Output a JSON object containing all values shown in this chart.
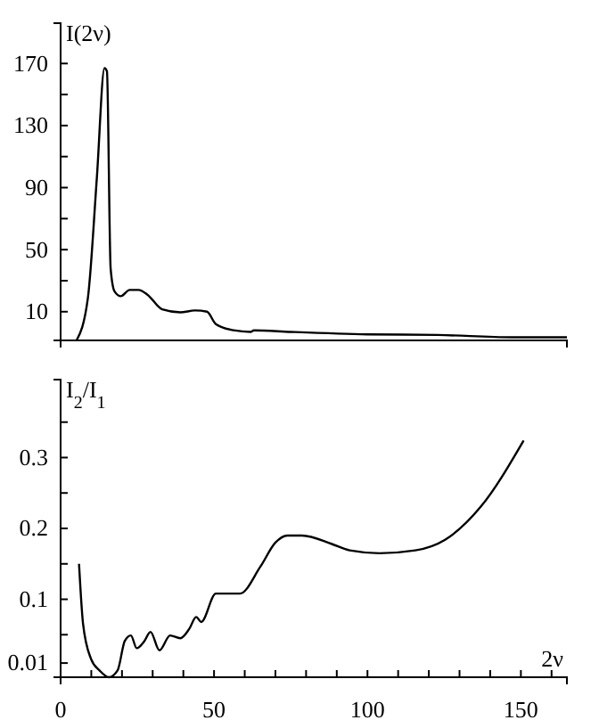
{
  "chart_data": [
    {
      "type": "line",
      "ylabel": "I(2ν)",
      "tick_labels": "y",
      "xlim": [
        0,
        165
      ],
      "ylim": [
        -8.5,
        196
      ],
      "yticks": [
        10,
        {
          "value": 30,
          "label": null
        },
        50,
        {
          "value": 70,
          "label": null
        },
        90,
        {
          "value": 110,
          "label": null
        },
        130,
        {
          "value": 150,
          "label": null
        },
        170
      ],
      "x": [
        5.2,
        8.9,
        11.8,
        14.3,
        15.1,
        16.3,
        17.6,
        19.6,
        22.5,
        25.4,
        28.3,
        33.1,
        39,
        43.8,
        47.7,
        50.6,
        56.4,
        62,
        63,
        75,
        100,
        123,
        147,
        165
      ],
      "series": [
        {
          "color": "#000000",
          "values": [
            -8.5,
            19,
            96,
            167,
            165,
            38,
            23,
            20,
            24,
            24,
            21,
            11.5,
            9.6,
            10.8,
            10,
            2,
            -2,
            -3,
            -2,
            -3,
            -4.6,
            -5,
            -6.5,
            -6.5
          ]
        }
      ]
    },
    {
      "type": "line",
      "ylabel": "I$_{2}$/I$_{1}$",
      "xlabel": "2ν",
      "xlim": [
        0,
        165
      ],
      "ylim": [
        -0.01,
        0.41
      ],
      "xticks": [
        0,
        {
          "value": 10,
          "label": null
        },
        {
          "value": 20,
          "label": null
        },
        {
          "value": 30,
          "label": null
        },
        {
          "value": 40,
          "label": null
        },
        50,
        {
          "value": 60,
          "label": null
        },
        {
          "value": 70,
          "label": null
        },
        {
          "value": 80,
          "label": null
        },
        {
          "value": 90,
          "label": null
        },
        100,
        {
          "value": 110,
          "label": null
        },
        {
          "value": 120,
          "label": null
        },
        {
          "value": 130,
          "label": null
        },
        {
          "value": 140,
          "label": null
        },
        150,
        {
          "value": 160,
          "label": null
        }
      ],
      "yticks": [
        0.01,
        {
          "value": 0.05,
          "label": null
        },
        0.1,
        {
          "value": 0.15,
          "label": null
        },
        0.2,
        {
          "value": 0.25,
          "label": null
        },
        0.3,
        {
          "value": 0.35,
          "label": null
        }
      ],
      "x": [
        6,
        7.3,
        9.9,
        12.8,
        15.7,
        18.6,
        20.9,
        22.9,
        24.8,
        27.3,
        29.3,
        32.2,
        35.7,
        39,
        41.9,
        44.2,
        45.8,
        50.6,
        58.4,
        65.1,
        70,
        73.9,
        78.7,
        88.4,
        94.2,
        103.9,
        115.6,
        125.3,
        137,
        150.9
      ],
      "series": [
        {
          "color": "#000000",
          "values": [
            0.15,
            0.066,
            0.016,
            -0.001,
            -0.01,
            0,
            0.041,
            0.049,
            0.031,
            0.041,
            0.054,
            0.028,
            0.049,
            0.045,
            0.058,
            0.075,
            0.068,
            0.108,
            0.108,
            0.146,
            0.18,
            0.19,
            0.19,
            0.178,
            0.169,
            0.165,
            0.169,
            0.184,
            0.231,
            0.324
          ]
        }
      ]
    }
  ]
}
